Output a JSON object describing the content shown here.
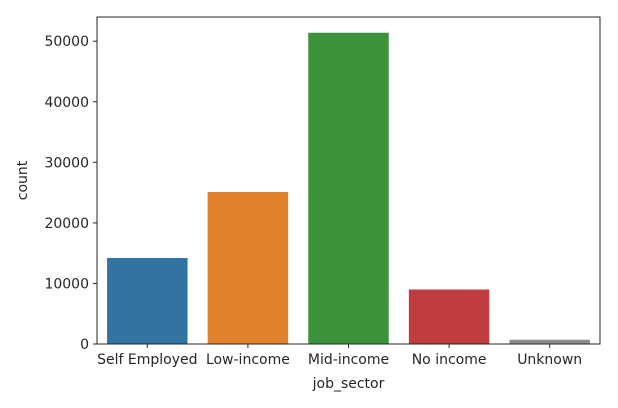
{
  "chart_data": {
    "type": "bar",
    "title": "",
    "xlabel": "job_sector",
    "ylabel": "count",
    "categories": [
      "Self Employed",
      "Low-income",
      "Mid-income",
      "No income",
      "Unknown"
    ],
    "values": [
      14200,
      25100,
      51400,
      9000,
      700
    ],
    "colors": [
      "#3274a1",
      "#e1812c",
      "#3a923a",
      "#c03d3e",
      "#9372b2"
    ],
    "bar_colors_visible": [
      "#3274a1",
      "#e1812c",
      "#3a923a",
      "#c03d3e",
      "#8c8c8c"
    ],
    "ylim": [
      0,
      54000
    ],
    "yticks": [
      0,
      10000,
      20000,
      30000,
      40000,
      50000
    ],
    "ytick_labels": [
      "0",
      "10000",
      "20000",
      "30000",
      "40000",
      "50000"
    ],
    "grid": false,
    "legend": "none"
  }
}
